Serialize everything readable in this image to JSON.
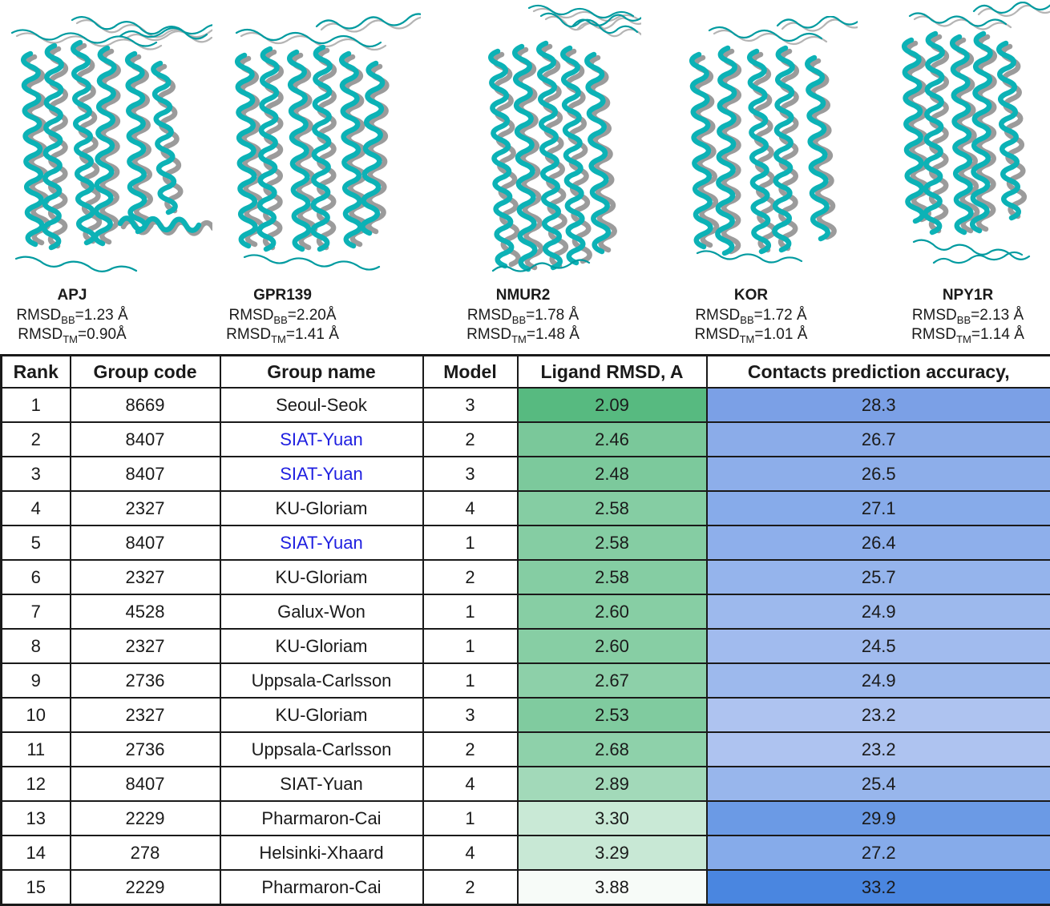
{
  "colors": {
    "teal": "#0cb2b6",
    "teal_dark": "#019ba0",
    "gray": "#9b9b9b",
    "gray_light": "#b4b4b4",
    "siat_blue": "#1f1fe0",
    "text": "#1a1a1a",
    "border": "#1a1a1a"
  },
  "panels": [
    {
      "name": "APJ",
      "lines": [
        {
          "base": "RMSD",
          "sub": "BB",
          "rest": "=1.23 Å"
        },
        {
          "base": "RMSD",
          "sub": "TM",
          "rest": "=0.90Å"
        }
      ]
    },
    {
      "name": "GPR139",
      "lines": [
        {
          "base": "RMSD",
          "sub": "BB",
          "rest": "=2.20Å"
        },
        {
          "base": "RMSD",
          "sub": "TM",
          "rest": "=1.41 Å"
        }
      ]
    },
    {
      "name": "NMUR2",
      "lines": [
        {
          "base": "RMSD",
          "sub": "BB",
          "rest": "=1.78 Å"
        },
        {
          "base": "RMSD",
          "sub": "TM",
          "rest": "=1.48 Å"
        }
      ]
    },
    {
      "name": "KOR",
      "lines": [
        {
          "base": "RMSD",
          "sub": "BB",
          "rest": "=1.72 Å"
        },
        {
          "base": "RMSD",
          "sub": "TM",
          "rest": "=1.01 Å"
        }
      ]
    },
    {
      "name": "NPY1R",
      "lines": [
        {
          "base": "RMSD",
          "sub": "BB",
          "rest": "=2.13 Å"
        },
        {
          "base": "RMSD",
          "sub": "TM",
          "rest": "=1.14 Å"
        }
      ]
    }
  ],
  "table": {
    "headers": [
      "Rank",
      "Group code",
      "Group name",
      "Model",
      "Ligand RMSD, A",
      "Contacts prediction accuracy,"
    ],
    "rows": [
      {
        "rank": "1",
        "code": "8669",
        "name": "Seoul-Seok",
        "highlight": false,
        "model": "3",
        "rmsd": "2.09",
        "rmsd_bg": "#57BA80",
        "acc": "28.3",
        "acc_bg": "#7BA0E6"
      },
      {
        "rank": "2",
        "code": "8407",
        "name": "SIAT-Yuan",
        "highlight": true,
        "model": "2",
        "rmsd": "2.46",
        "rmsd_bg": "#7AC89A",
        "acc": "26.7",
        "acc_bg": "#8BACE9"
      },
      {
        "rank": "3",
        "code": "8407",
        "name": "SIAT-Yuan",
        "highlight": true,
        "model": "3",
        "rmsd": "2.48",
        "rmsd_bg": "#7CC99C",
        "acc": "26.5",
        "acc_bg": "#8DAEEA"
      },
      {
        "rank": "4",
        "code": "2327",
        "name": "KU-Gloriam",
        "highlight": false,
        "model": "4",
        "rmsd": "2.58",
        "rmsd_bg": "#85CDA3",
        "acc": "27.1",
        "acc_bg": "#87ABEA"
      },
      {
        "rank": "5",
        "code": "8407",
        "name": "SIAT-Yuan",
        "highlight": true,
        "model": "1",
        "rmsd": "2.58",
        "rmsd_bg": "#85CDA3",
        "acc": "26.4",
        "acc_bg": "#8EAFEB"
      },
      {
        "rank": "6",
        "code": "2327",
        "name": "KU-Gloriam",
        "highlight": false,
        "model": "2",
        "rmsd": "2.58",
        "rmsd_bg": "#85CDA3",
        "acc": "25.7",
        "acc_bg": "#95B4EC"
      },
      {
        "rank": "7",
        "code": "4528",
        "name": "Galux-Won",
        "highlight": false,
        "model": "1",
        "rmsd": "2.60",
        "rmsd_bg": "#87CEA4",
        "acc": "24.9",
        "acc_bg": "#9DB9ED"
      },
      {
        "rank": "8",
        "code": "2327",
        "name": "KU-Gloriam",
        "highlight": false,
        "model": "1",
        "rmsd": "2.60",
        "rmsd_bg": "#87CEA4",
        "acc": "24.5",
        "acc_bg": "#A1BBEE"
      },
      {
        "rank": "9",
        "code": "2736",
        "name": "Uppsala-Carlsson",
        "highlight": false,
        "model": "1",
        "rmsd": "2.67",
        "rmsd_bg": "#8DD0A9",
        "acc": "24.9",
        "acc_bg": "#9DB9ED"
      },
      {
        "rank": "10",
        "code": "2327",
        "name": "KU-Gloriam",
        "highlight": false,
        "model": "3",
        "rmsd": "2.53",
        "rmsd_bg": "#80CB9F",
        "acc": "23.2",
        "acc_bg": "#AEC3F0"
      },
      {
        "rank": "11",
        "code": "2736",
        "name": "Uppsala-Carlsson",
        "highlight": false,
        "model": "2",
        "rmsd": "2.68",
        "rmsd_bg": "#8ED1AA",
        "acc": "23.2",
        "acc_bg": "#AEC3F0"
      },
      {
        "rank": "12",
        "code": "8407",
        "name": "SIAT-Yuan",
        "highlight": false,
        "model": "4",
        "rmsd": "2.89",
        "rmsd_bg": "#A2D9B9",
        "acc": "25.4",
        "acc_bg": "#98B6EC"
      },
      {
        "rank": "13",
        "code": "2229",
        "name": "Pharmaron-Cai",
        "highlight": false,
        "model": "1",
        "rmsd": "3.30",
        "rmsd_bg": "#C9E9D6",
        "acc": "29.9",
        "acc_bg": "#6B9AE5"
      },
      {
        "rank": "14",
        "code": "278",
        "name": "Helsinki-Xhaard",
        "highlight": false,
        "model": "4",
        "rmsd": "3.29",
        "rmsd_bg": "#C8E8D5",
        "acc": "27.2",
        "acc_bg": "#86ABEA"
      },
      {
        "rank": "15",
        "code": "2229",
        "name": "Pharmaron-Cai",
        "highlight": false,
        "model": "2",
        "rmsd": "3.88",
        "rmsd_bg": "#F7FBF8",
        "acc": "33.2",
        "acc_bg": "#4A86E0"
      }
    ]
  }
}
